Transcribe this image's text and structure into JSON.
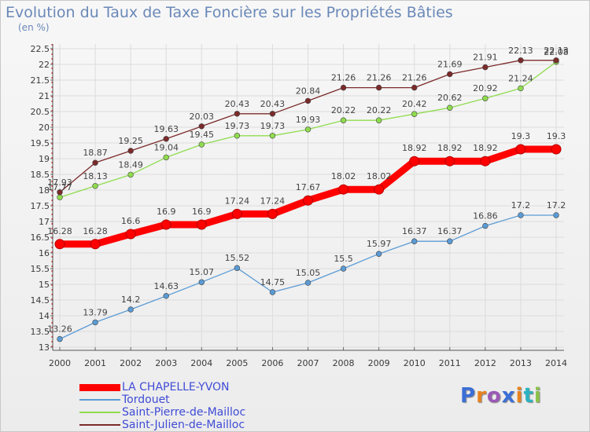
{
  "header": {
    "title": "Evolution du Taux de Taxe Foncière sur les Propriétés Bâties",
    "unit": "(en %)"
  },
  "logo": {
    "text": "Proxiti",
    "letters": [
      {
        "char": "P",
        "color": "#3b6fd6"
      },
      {
        "char": "r",
        "color": "#e8821e"
      },
      {
        "char": "o",
        "color": "#9b59b6"
      },
      {
        "char": "x",
        "color": "#3b6fd6"
      },
      {
        "char": "i",
        "color": "#e8821e"
      },
      {
        "char": "t",
        "color": "#2bb3c0"
      },
      {
        "char": "i",
        "color": "#8bc34a"
      }
    ]
  },
  "chart_data": {
    "type": "line",
    "title": "Evolution du Taux de Taxe Foncière sur les Propriétés Bâties",
    "ylabel": "(en %)",
    "xlabel": "",
    "x": [
      "2000",
      "2001",
      "2002",
      "2003",
      "2004",
      "2005",
      "2006",
      "2007",
      "2008",
      "2009",
      "2010",
      "2011",
      "2012",
      "2013",
      "2014"
    ],
    "ylim": [
      13,
      22.5
    ],
    "yticks": [
      "13",
      "13.5",
      "14",
      "14.5",
      "15",
      "15.5",
      "16",
      "16.5",
      "17",
      "17.5",
      "18",
      "18.5",
      "19",
      "19.5",
      "20",
      "20.5",
      "21",
      "21.5",
      "22",
      "22.5"
    ],
    "grid": true,
    "legend_position": "bottom-left",
    "series": [
      {
        "name": "LA CHAPELLE-YVON",
        "color": "#ff0000",
        "values": [
          16.28,
          16.28,
          16.6,
          16.9,
          16.9,
          17.24,
          17.24,
          17.67,
          18.02,
          18.02,
          18.92,
          18.92,
          18.92,
          19.3,
          19.3
        ],
        "labels": [
          "16.28",
          "16.28",
          "16.6",
          "16.9",
          "16.9",
          "17.24",
          "17.24",
          "17.67",
          "18.02",
          "18.02",
          "18.92",
          "18.92",
          "18.92",
          "19.3",
          "19.3"
        ]
      },
      {
        "name": "Tordouet",
        "color": "#5b9bd5",
        "values": [
          13.26,
          13.79,
          14.2,
          14.63,
          15.07,
          15.52,
          14.75,
          15.05,
          15.5,
          15.97,
          16.37,
          16.37,
          16.86,
          17.2,
          17.2
        ],
        "labels": [
          "13.26",
          "13.79",
          "14.2",
          "14.63",
          "15.07",
          "15.52",
          "14.75",
          "15.05",
          "15.5",
          "15.97",
          "16.37",
          "16.37",
          "16.86",
          "17.2",
          "17.2"
        ]
      },
      {
        "name": "Saint-Pierre-de-Mailloc",
        "color": "#8fdc4e",
        "values": [
          17.77,
          18.13,
          18.49,
          19.04,
          19.45,
          19.73,
          19.73,
          19.93,
          20.22,
          20.22,
          20.42,
          20.62,
          20.92,
          21.24,
          22.08
        ],
        "labels": [
          "17.77",
          "18.13",
          "18.49",
          "19.04",
          "19.45",
          "19.73",
          "19.73",
          "19.93",
          "20.22",
          "20.22",
          "20.42",
          "20.62",
          "20.92",
          "21.24",
          "22.08"
        ]
      },
      {
        "name": "Saint-Julien-de-Mailloc",
        "color": "#7b2a2a",
        "values": [
          17.93,
          18.87,
          19.25,
          19.63,
          20.03,
          20.43,
          20.43,
          20.84,
          21.26,
          21.26,
          21.26,
          21.69,
          21.91,
          22.13,
          22.13
        ],
        "labels": [
          "17.93",
          "18.87",
          "19.25",
          "19.63",
          "20.03",
          "20.43",
          "20.43",
          "20.84",
          "21.26",
          "21.26",
          "21.26",
          "21.69",
          "21.91",
          "22.13",
          "22.13"
        ]
      }
    ]
  }
}
